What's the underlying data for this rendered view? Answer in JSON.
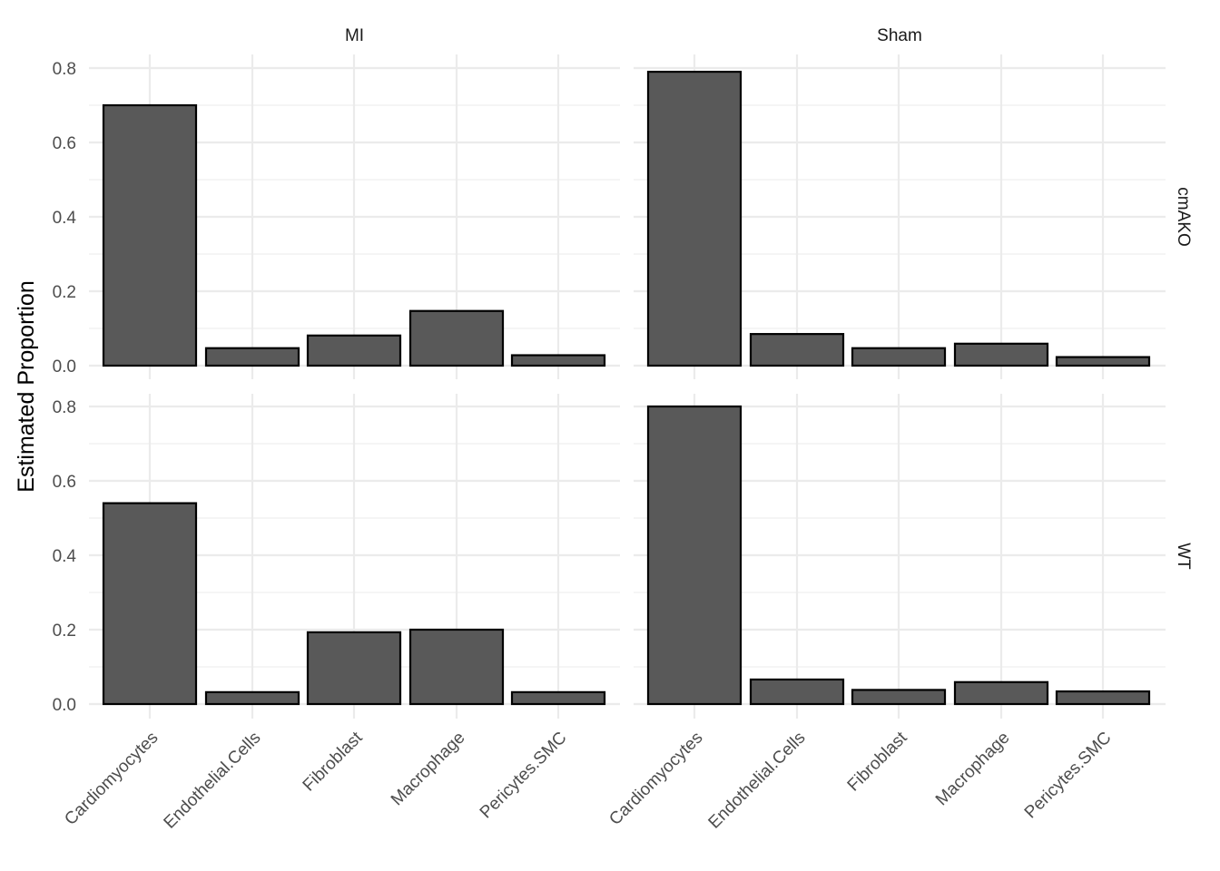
{
  "chart_data": {
    "type": "bar",
    "facet_columns": [
      "MI",
      "Sham"
    ],
    "facet_rows": [
      "cmAKO",
      "WT"
    ],
    "categories": [
      "Cardiomyocytes",
      "Endothelial.Cells",
      "Fibroblast",
      "Macrophage",
      "Pericytes.SMC"
    ],
    "ylabel": "Estimated Proportion",
    "xlabel": "",
    "ylim": [
      0,
      0.85
    ],
    "yticks": [
      "0.0",
      "0.2",
      "0.4",
      "0.6",
      "0.8"
    ],
    "grid": true,
    "panels": [
      {
        "row": "cmAKO",
        "col": "MI",
        "values": [
          0.7,
          0.047,
          0.081,
          0.147,
          0.028
        ]
      },
      {
        "row": "cmAKO",
        "col": "Sham",
        "values": [
          0.79,
          0.085,
          0.047,
          0.059,
          0.023
        ]
      },
      {
        "row": "WT",
        "col": "MI",
        "values": [
          0.54,
          0.032,
          0.193,
          0.2,
          0.032
        ]
      },
      {
        "row": "WT",
        "col": "Sham",
        "values": [
          0.8,
          0.066,
          0.038,
          0.059,
          0.034
        ]
      }
    ]
  }
}
